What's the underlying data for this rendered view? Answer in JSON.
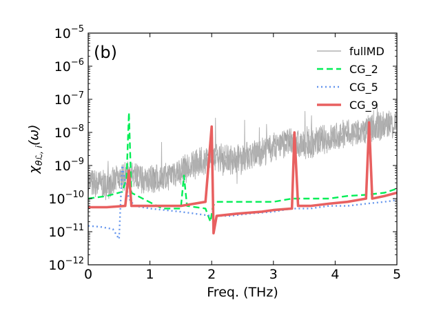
{
  "chart_data": {
    "type": "line",
    "panel_label": "(b)",
    "xlabel": "Freq. (THz)",
    "ylabel_main": "χ",
    "ylabel_sub": "θℒ, i",
    "ylabel_tail": "(ω)",
    "xlim": [
      0,
      5
    ],
    "ylim_log10": [
      -12,
      -5
    ],
    "yscale": "log",
    "grid": false,
    "legend_position": "top-right",
    "x_ticks": [
      0,
      1,
      2,
      3,
      4,
      5
    ],
    "x_tick_labels": [
      "0",
      "1",
      "2",
      "3",
      "4",
      "5"
    ],
    "y_ticks_exp": [
      -12,
      -11,
      -10,
      -9,
      -8,
      -7,
      -6,
      -5
    ],
    "y_tick_base": "10",
    "y_tick_exps": [
      "−12",
      "−11",
      "−10",
      "−9",
      "−8",
      "−7",
      "−6",
      "−5"
    ],
    "series": [
      {
        "name": "fullMD",
        "color": "#b0b0b0",
        "style": "solid",
        "description_points": {
          "x": [
            0.02,
            0.3,
            0.6,
            0.9,
            1.2,
            1.5,
            1.8,
            2.0,
            2.3,
            2.6,
            2.9,
            3.2,
            3.5,
            3.8,
            4.1,
            4.4,
            4.7,
            5.0
          ],
          "y": [
            3e-10,
            2.5e-10,
            5e-10,
            4e-10,
            4e-10,
            7e-10,
            1.2e-09,
            2e-09,
            1.5e-09,
            2e-09,
            3e-09,
            5e-09,
            4e-09,
            6e-09,
            8e-09,
            1e-08,
            1.5e-08,
            2e-08
          ]
        }
      },
      {
        "name": "CG_2",
        "color": "#00ee55",
        "style": "dashed",
        "x": [
          0.0,
          0.3,
          0.55,
          0.62,
          0.66,
          0.7,
          0.8,
          1.2,
          1.5,
          1.55,
          1.6,
          1.9,
          1.98,
          2.02,
          2.08,
          2.3,
          2.7,
          3.0,
          3.3,
          3.6,
          3.9,
          4.2,
          4.5,
          4.8,
          5.0
        ],
        "y": [
          1e-10,
          1.2e-10,
          1.6e-10,
          4e-10,
          4e-08,
          1.5e-10,
          1.2e-10,
          5e-11,
          5e-11,
          5e-10,
          6e-11,
          5e-11,
          2e-11,
          6e-11,
          8e-11,
          8e-11,
          8e-11,
          8e-11,
          1e-10,
          1e-10,
          1e-10,
          1.2e-10,
          1.3e-10,
          1.5e-10,
          2e-10
        ]
      },
      {
        "name": "CG_5",
        "color": "#6495ed",
        "style": "dotted",
        "x": [
          0.0,
          0.2,
          0.4,
          0.5,
          0.55,
          0.6,
          0.66,
          0.75,
          1.0,
          1.5,
          2.0,
          2.3,
          2.6,
          3.0,
          3.3,
          3.6,
          3.9,
          4.2,
          4.5,
          4.8,
          5.0
        ],
        "y": [
          1.5e-11,
          1.4e-11,
          1.2e-11,
          6e-12,
          1e-09,
          3e-10,
          1e-10,
          6e-11,
          5e-11,
          4e-11,
          3e-11,
          3e-11,
          3.5e-11,
          4e-11,
          5e-11,
          5e-11,
          6e-11,
          6e-11,
          7e-11,
          8e-11,
          9e-11
        ]
      },
      {
        "name": "CG_9",
        "color": "#e86060",
        "style": "solid",
        "x": [
          0.0,
          0.3,
          0.6,
          0.66,
          0.7,
          1.0,
          1.5,
          1.9,
          2.0,
          2.03,
          2.08,
          2.4,
          2.8,
          3.0,
          3.3,
          3.34,
          3.4,
          3.6,
          3.9,
          4.2,
          4.5,
          4.55,
          4.6,
          4.8,
          5.0
        ],
        "y": [
          5.5e-11,
          5.5e-11,
          6e-11,
          7e-10,
          6e-11,
          6e-11,
          6e-11,
          8e-11,
          1.5e-08,
          9e-12,
          3e-11,
          3.5e-11,
          4e-11,
          4.5e-11,
          5e-11,
          1e-08,
          6e-11,
          6e-11,
          7e-11,
          8e-11,
          1e-10,
          2e-08,
          1e-10,
          1.2e-10,
          1.5e-10
        ]
      }
    ]
  }
}
